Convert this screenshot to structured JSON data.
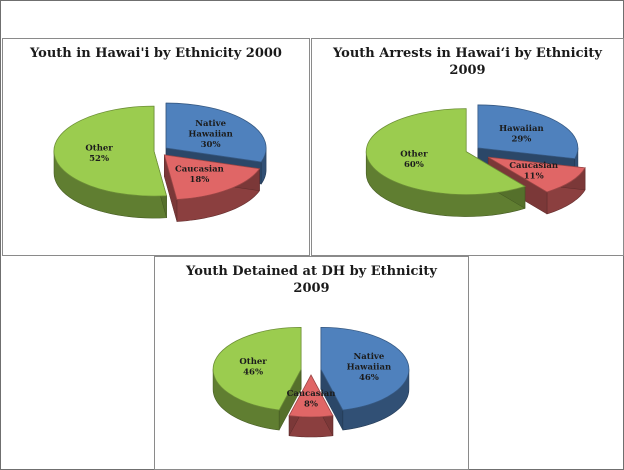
{
  "chart_data": [
    {
      "type": "pie",
      "style": "3d-exploded",
      "title": "Youth in Hawai'i by Ethnicity 2000",
      "slices": [
        {
          "name": "Native Hawaiian",
          "label_lines": [
            "Native",
            "Hawaiian"
          ],
          "value": 30,
          "display": "30%",
          "color": "#4f81bd"
        },
        {
          "name": "Caucasian",
          "label_lines": [
            "Caucasian"
          ],
          "value": 18,
          "display": "18%",
          "color": "#e06666"
        },
        {
          "name": "Other",
          "label_lines": [
            "Other"
          ],
          "value": 52,
          "display": "52%",
          "color": "#9bcc4f"
        }
      ]
    },
    {
      "type": "pie",
      "style": "3d-exploded",
      "title": "Youth Arrests in Hawai‘i by Ethnicity 2009",
      "slices": [
        {
          "name": "Hawaiian",
          "label_lines": [
            "Hawaiian"
          ],
          "value": 29,
          "display": "29%",
          "color": "#4f81bd"
        },
        {
          "name": "Caucasian",
          "label_lines": [
            "Caucasian"
          ],
          "value": 11,
          "display": "11%",
          "color": "#e06666"
        },
        {
          "name": "Other",
          "label_lines": [
            "Other"
          ],
          "value": 60,
          "display": "60%",
          "color": "#9bcc4f"
        }
      ]
    },
    {
      "type": "pie",
      "style": "3d-exploded",
      "title": "Youth Detained at DH by Ethnicity 2009",
      "slices": [
        {
          "name": "Native Hawaiian",
          "label_lines": [
            "Native",
            "Hawaiian"
          ],
          "value": 46,
          "display": "46%",
          "color": "#4f81bd"
        },
        {
          "name": "Caucasian",
          "label_lines": [
            "Caucasian"
          ],
          "value": 8,
          "display": "8%",
          "color": "#e06666"
        },
        {
          "name": "Other",
          "label_lines": [
            "Other"
          ],
          "value": 46,
          "display": "46%",
          "color": "#9bcc4f"
        }
      ]
    }
  ]
}
